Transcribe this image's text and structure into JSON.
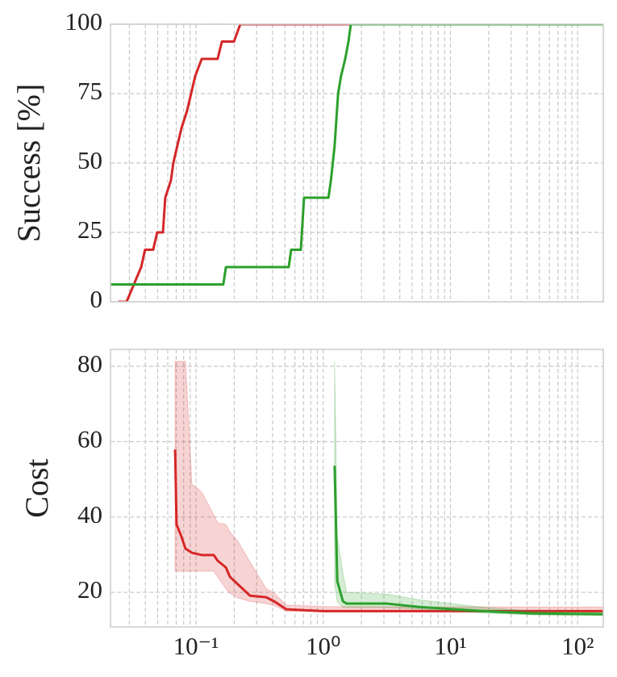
{
  "chart_data": [
    {
      "type": "line",
      "ylabel": "Success [%]",
      "xscale": "log",
      "xlim": [
        0.0213,
        159
      ],
      "xticks": [
        0.1,
        1,
        10,
        100
      ],
      "xminorticks": [
        0.03,
        0.04,
        0.05,
        0.06,
        0.07,
        0.08,
        0.09,
        0.2,
        0.3,
        0.4,
        0.5,
        0.6,
        0.7,
        0.8,
        0.9,
        2,
        3,
        4,
        5,
        6,
        7,
        8,
        9,
        20,
        30,
        40,
        50,
        60,
        70,
        80,
        90
      ],
      "ylim": [
        0,
        100
      ],
      "yticks": [
        0,
        25,
        50,
        75,
        100
      ],
      "grid": true,
      "series": [
        {
          "color": "#d62728",
          "x": [
            0.0246,
            0.0285,
            0.0371,
            0.0398,
            0.0461,
            0.0496,
            0.055,
            0.0574,
            0.0636,
            0.0664,
            0.0714,
            0.0769,
            0.0851,
            0.0916,
            0.0986,
            0.111,
            0.148,
            0.16,
            0.199,
            0.223,
            159
          ],
          "values": [
            0,
            0,
            12.5,
            18.75,
            18.75,
            25,
            25,
            37.5,
            43.75,
            50,
            56.25,
            62.5,
            68.75,
            75,
            81.25,
            87.5,
            87.5,
            93.75,
            93.75,
            100,
            100
          ]
        },
        {
          "color": "#2ca02c",
          "x": [
            0.0213,
            0.164,
            0.172,
            0.536,
            0.56,
            0.667,
            0.707,
            1.1,
            1.15,
            1.23,
            1.31,
            1.38,
            1.49,
            1.58,
            1.65,
            159
          ],
          "values": [
            6.25,
            6.25,
            12.5,
            12.5,
            18.75,
            18.75,
            37.5,
            37.5,
            43.75,
            56.25,
            75,
            81.25,
            87.5,
            93.75,
            100,
            100
          ]
        }
      ]
    },
    {
      "type": "line",
      "ylabel": "Cost",
      "xscale": "log",
      "xlim": [
        0.0213,
        159
      ],
      "xticks": [
        {
          "value": 0.1,
          "label": "10⁻¹"
        },
        {
          "value": 1,
          "label": "10⁰"
        },
        {
          "value": 10,
          "label": "10¹"
        },
        {
          "value": 100,
          "label": "10²"
        }
      ],
      "xminorticks": [
        0.03,
        0.04,
        0.05,
        0.06,
        0.07,
        0.08,
        0.09,
        0.2,
        0.3,
        0.4,
        0.5,
        0.6,
        0.7,
        0.8,
        0.9,
        2,
        3,
        4,
        5,
        6,
        7,
        8,
        9,
        20,
        30,
        40,
        50,
        60,
        70,
        80,
        90
      ],
      "ylim": [
        10.8,
        84.5
      ],
      "yticks": [
        20,
        40,
        60,
        80
      ],
      "grid": true,
      "series": [
        {
          "color": "#d62728",
          "x": [
            0.0686,
            0.0704,
            0.0769,
            0.0827,
            0.0929,
            0.111,
            0.138,
            0.148,
            0.172,
            0.185,
            0.214,
            0.266,
            0.356,
            0.412,
            0.513,
            0.99,
            159
          ],
          "values": [
            57.9,
            38.0,
            34.8,
            31.6,
            30.5,
            29.9,
            29.9,
            28.4,
            26.6,
            24.1,
            22.1,
            19.1,
            18.7,
            17.6,
            15.5,
            15.0,
            15.0
          ],
          "upper": [
            81.3,
            81.3,
            81.3,
            81.3,
            48.7,
            46.6,
            40.5,
            38.5,
            38.0,
            36,
            33.5,
            28,
            21,
            19.8,
            16.6,
            16.2,
            16.1
          ],
          "lower": [
            25.6,
            25.6,
            25.6,
            25.6,
            25.6,
            25.6,
            25.6,
            24.1,
            21,
            19.8,
            18.5,
            17.6,
            17.0,
            16.5,
            15.0,
            14.9,
            14.8
          ]
        },
        {
          "color": "#2ca02c",
          "x": [
            1.23,
            1.29,
            1.43,
            1.53,
            3.19,
            5.7,
            18.3,
            44,
            159
          ],
          "values": [
            53.6,
            23.0,
            17.6,
            17.0,
            17.0,
            16.1,
            15.0,
            14.4,
            14.2
          ],
          "upper": [
            81.3,
            35,
            25,
            20,
            19.5,
            18,
            16,
            15,
            14.6
          ],
          "lower": [
            22,
            17.5,
            16,
            16,
            16,
            15.5,
            14.5,
            14,
            13.8
          ]
        }
      ]
    }
  ]
}
